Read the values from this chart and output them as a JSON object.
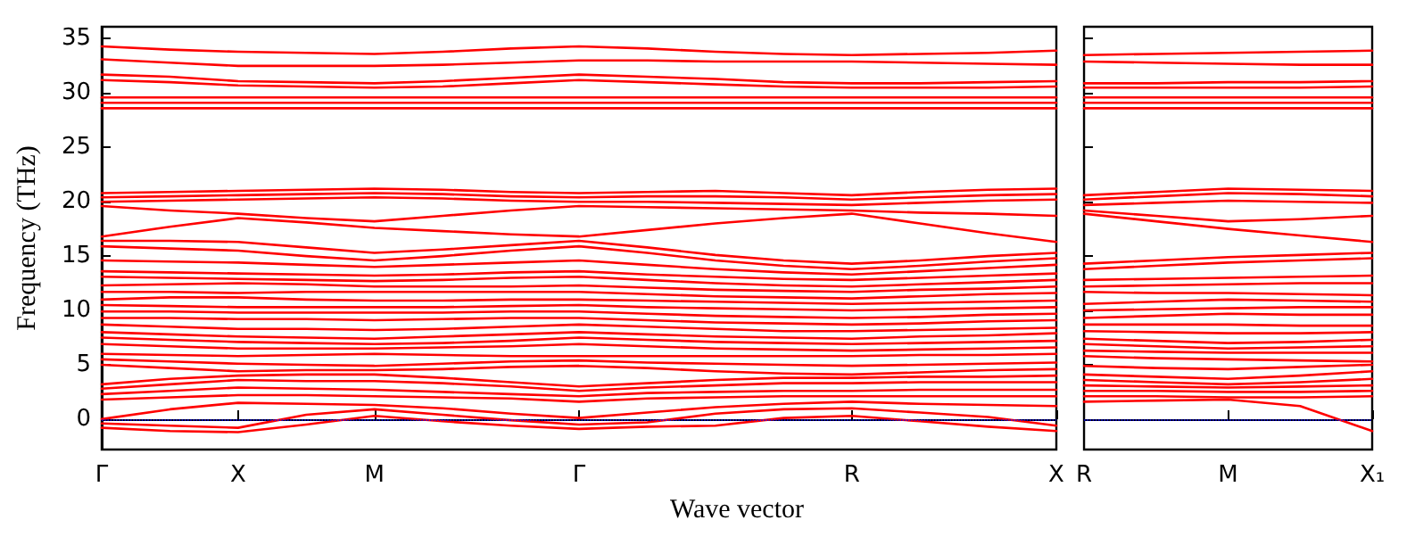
{
  "chart_data": [
    {
      "type": "line",
      "ylabel": "Frequency (THz)",
      "xlabel": "Wave vector",
      "categories": [
        "Γ",
        null,
        "X",
        null,
        "M",
        null,
        null,
        "Γ",
        null,
        null,
        null,
        "R",
        null,
        null,
        "X"
      ],
      "ylim": [
        -2.8,
        36.1
      ],
      "yticks": [
        0,
        5,
        10,
        15,
        20,
        25,
        30,
        35
      ],
      "ref_lines": [
        {
          "axis": "y",
          "value": 0,
          "label": null,
          "color": "#0000ff",
          "line_style": "dotted"
        }
      ],
      "series": [
        {
          "color": "#ff0000",
          "values": [
            34.3,
            34.0,
            33.8,
            33.7,
            33.6,
            33.8,
            34.1,
            34.3,
            34.1,
            33.8,
            33.6,
            33.5,
            33.6,
            33.7,
            33.9
          ]
        },
        {
          "color": "#ff0000",
          "values": [
            33.1,
            32.8,
            32.5,
            32.5,
            32.5,
            32.6,
            32.8,
            33.0,
            33.0,
            32.9,
            32.9,
            32.9,
            32.8,
            32.7,
            32.6
          ]
        },
        {
          "color": "#ff0000",
          "values": [
            31.7,
            31.5,
            31.1,
            31.0,
            30.9,
            31.1,
            31.4,
            31.7,
            31.5,
            31.3,
            31.0,
            30.9,
            30.9,
            31.0,
            31.1
          ]
        },
        {
          "color": "#ff0000",
          "values": [
            31.2,
            31.0,
            30.7,
            30.6,
            30.5,
            30.6,
            30.9,
            31.2,
            31.0,
            30.8,
            30.6,
            30.5,
            30.5,
            30.5,
            30.6
          ]
        },
        {
          "color": "#ff0000",
          "values": [
            29.6,
            29.6,
            29.6,
            29.6,
            29.6,
            29.6,
            29.6,
            29.6,
            29.6,
            29.6,
            29.6,
            29.6,
            29.6,
            29.6,
            29.6
          ]
        },
        {
          "color": "#ff0000",
          "values": [
            29.1,
            29.1,
            29.1,
            29.1,
            29.1,
            29.1,
            29.1,
            29.1,
            29.1,
            29.1,
            29.1,
            29.1,
            29.1,
            29.1,
            29.1
          ]
        },
        {
          "color": "#ff0000",
          "values": [
            28.6,
            28.6,
            28.6,
            28.6,
            28.6,
            28.6,
            28.6,
            28.6,
            28.6,
            28.6,
            28.6,
            28.6,
            28.6,
            28.6,
            28.6
          ]
        },
        {
          "color": "#ff0000",
          "values": [
            20.8,
            20.9,
            21.0,
            21.1,
            21.2,
            21.1,
            20.9,
            20.8,
            20.9,
            21.0,
            20.8,
            20.6,
            20.9,
            21.1,
            21.2
          ]
        },
        {
          "color": "#ff0000",
          "values": [
            20.4,
            20.5,
            20.6,
            20.7,
            20.8,
            20.7,
            20.5,
            20.4,
            20.5,
            20.5,
            20.4,
            20.2,
            20.4,
            20.6,
            20.7
          ]
        },
        {
          "color": "#ff0000",
          "values": [
            20.0,
            20.1,
            20.2,
            20.3,
            20.4,
            20.3,
            20.1,
            20.0,
            20.0,
            19.9,
            19.8,
            19.7,
            19.9,
            20.1,
            20.2
          ]
        },
        {
          "color": "#ff0000",
          "values": [
            19.6,
            19.2,
            18.9,
            18.5,
            18.2,
            18.7,
            19.2,
            19.6,
            19.5,
            19.4,
            19.3,
            19.2,
            19.0,
            18.9,
            18.7
          ]
        },
        {
          "color": "#ff0000",
          "values": [
            16.8,
            17.7,
            18.5,
            18.1,
            17.6,
            17.3,
            17.0,
            16.8,
            17.4,
            18.0,
            18.5,
            18.9,
            18.0,
            17.1,
            16.3
          ]
        },
        {
          "color": "#ff0000",
          "values": [
            16.4,
            16.4,
            16.3,
            15.8,
            15.3,
            15.6,
            16.0,
            16.4,
            15.8,
            15.1,
            14.6,
            14.3,
            14.6,
            15.0,
            15.3
          ]
        },
        {
          "color": "#ff0000",
          "values": [
            15.9,
            15.7,
            15.5,
            15.0,
            14.6,
            15.0,
            15.5,
            15.9,
            15.3,
            14.6,
            14.1,
            13.8,
            14.1,
            14.5,
            14.8
          ]
        },
        {
          "color": "#ff0000",
          "values": [
            14.6,
            14.5,
            14.4,
            14.2,
            14.0,
            14.2,
            14.4,
            14.6,
            14.2,
            13.8,
            13.5,
            13.3,
            13.6,
            13.9,
            14.2
          ]
        },
        {
          "color": "#ff0000",
          "values": [
            13.6,
            13.5,
            13.4,
            13.3,
            13.2,
            13.3,
            13.5,
            13.6,
            13.3,
            13.1,
            12.9,
            12.8,
            13.0,
            13.2,
            13.4
          ]
        },
        {
          "color": "#ff0000",
          "values": [
            13.1,
            13.0,
            12.9,
            12.8,
            12.7,
            12.8,
            13.0,
            13.1,
            12.8,
            12.5,
            12.3,
            12.2,
            12.4,
            12.6,
            12.8
          ]
        },
        {
          "color": "#ff0000",
          "values": [
            12.3,
            12.4,
            12.5,
            12.4,
            12.2,
            12.2,
            12.2,
            12.3,
            12.1,
            11.9,
            11.8,
            11.7,
            11.9,
            12.0,
            12.2
          ]
        },
        {
          "color": "#ff0000",
          "values": [
            11.7,
            11.7,
            11.6,
            11.7,
            11.7,
            11.7,
            11.7,
            11.7,
            11.5,
            11.3,
            11.2,
            11.1,
            11.3,
            11.5,
            11.6
          ]
        },
        {
          "color": "#ff0000",
          "values": [
            11.0,
            11.2,
            11.2,
            11.0,
            10.9,
            10.9,
            11.0,
            11.0,
            10.9,
            10.8,
            10.7,
            10.6,
            10.7,
            10.8,
            10.9
          ]
        },
        {
          "color": "#ff0000",
          "values": [
            10.5,
            10.4,
            10.3,
            10.3,
            10.3,
            10.3,
            10.4,
            10.5,
            10.3,
            10.2,
            10.1,
            10.0,
            10.1,
            10.2,
            10.3
          ]
        },
        {
          "color": "#ff0000",
          "values": [
            9.9,
            9.9,
            9.8,
            9.8,
            9.8,
            9.8,
            9.9,
            9.9,
            9.7,
            9.5,
            9.4,
            9.3,
            9.4,
            9.6,
            9.7
          ]
        },
        {
          "color": "#ff0000",
          "values": [
            9.3,
            9.3,
            9.2,
            9.2,
            9.1,
            9.2,
            9.3,
            9.3,
            9.1,
            8.9,
            8.8,
            8.7,
            8.8,
            9.0,
            9.1
          ]
        },
        {
          "color": "#ff0000",
          "values": [
            8.7,
            8.5,
            8.3,
            8.3,
            8.2,
            8.3,
            8.5,
            8.7,
            8.5,
            8.3,
            8.1,
            8.1,
            8.2,
            8.3,
            8.4
          ]
        },
        {
          "color": "#ff0000",
          "values": [
            8.0,
            7.8,
            7.6,
            7.5,
            7.4,
            7.6,
            7.8,
            8.0,
            7.8,
            7.6,
            7.5,
            7.4,
            7.6,
            7.7,
            7.9
          ]
        },
        {
          "color": "#ff0000",
          "values": [
            7.5,
            7.3,
            7.1,
            7.0,
            6.9,
            7.0,
            7.2,
            7.5,
            7.3,
            7.1,
            7.0,
            6.9,
            7.0,
            7.1,
            7.2
          ]
        },
        {
          "color": "#ff0000",
          "values": [
            6.9,
            6.7,
            6.5,
            6.5,
            6.5,
            6.6,
            6.7,
            6.9,
            6.7,
            6.5,
            6.4,
            6.3,
            6.4,
            6.5,
            6.6
          ]
        },
        {
          "color": "#ff0000",
          "values": [
            6.0,
            5.9,
            5.8,
            5.9,
            6.0,
            5.9,
            5.8,
            5.8,
            5.8,
            5.8,
            5.8,
            5.8,
            5.9,
            5.9,
            6.0
          ]
        },
        {
          "color": "#ff0000",
          "values": [
            5.5,
            5.3,
            5.1,
            5.0,
            4.9,
            5.1,
            5.3,
            5.4,
            5.2,
            5.1,
            5.0,
            4.9,
            5.0,
            5.1,
            5.2
          ]
        },
        {
          "color": "#ff0000",
          "values": [
            5.0,
            4.7,
            4.4,
            4.5,
            4.5,
            4.6,
            4.8,
            4.9,
            4.7,
            4.4,
            4.2,
            4.1,
            4.3,
            4.5,
            4.6
          ]
        },
        {
          "color": "#ff0000",
          "values": [
            3.2,
            3.7,
            4.0,
            4.1,
            4.1,
            3.8,
            3.4,
            3.0,
            3.3,
            3.6,
            3.8,
            3.8,
            3.9,
            3.9,
            4.0
          ]
        },
        {
          "color": "#ff0000",
          "values": [
            2.8,
            3.2,
            3.6,
            3.5,
            3.5,
            3.3,
            3.0,
            2.6,
            2.9,
            3.1,
            3.3,
            3.3,
            3.4,
            3.4,
            3.4
          ]
        },
        {
          "color": "#ff0000",
          "values": [
            2.3,
            2.6,
            2.9,
            2.8,
            2.7,
            2.5,
            2.3,
            2.1,
            2.4,
            2.5,
            2.6,
            2.6,
            2.7,
            2.7,
            2.7
          ]
        },
        {
          "color": "#ff0000",
          "values": [
            1.8,
            2.0,
            2.2,
            2.2,
            2.1,
            2.0,
            1.9,
            1.6,
            1.9,
            2.0,
            2.1,
            2.1,
            2.1,
            2.1,
            2.1
          ]
        },
        {
          "color": "#ff0000",
          "values": [
            0.0,
            0.9,
            1.5,
            1.4,
            1.3,
            1.0,
            0.5,
            0.1,
            0.6,
            1.1,
            1.4,
            1.6,
            1.4,
            1.3,
            1.2
          ]
        },
        {
          "color": "#ff0000",
          "values": [
            -0.4,
            -0.6,
            -0.8,
            0.4,
            0.9,
            0.4,
            -0.1,
            -0.5,
            -0.3,
            0.5,
            0.9,
            1.0,
            0.6,
            0.2,
            -0.6
          ]
        },
        {
          "color": "#ff0000",
          "values": [
            -0.8,
            -1.1,
            -1.2,
            -0.5,
            0.3,
            -0.2,
            -0.6,
            -0.9,
            -0.7,
            -0.6,
            0.1,
            0.3,
            -0.2,
            -0.7,
            -1.1
          ]
        }
      ]
    },
    {
      "type": "line",
      "tick_labels": "x",
      "categories": [
        "R",
        null,
        "M",
        null,
        "X₁"
      ],
      "ylim": [
        -2.8,
        36.1
      ],
      "yticks": [
        0,
        5,
        10,
        15,
        20,
        25,
        30,
        35
      ],
      "ref_lines": [
        {
          "axis": "y",
          "value": 0,
          "label": null,
          "color": "#0000ff",
          "line_style": "dotted"
        }
      ],
      "series": [
        {
          "color": "#ff0000",
          "values": [
            33.5,
            33.6,
            33.7,
            33.8,
            33.9
          ]
        },
        {
          "color": "#ff0000",
          "values": [
            32.9,
            32.8,
            32.7,
            32.6,
            32.6
          ]
        },
        {
          "color": "#ff0000",
          "values": [
            30.9,
            30.9,
            31.0,
            31.0,
            31.1
          ]
        },
        {
          "color": "#ff0000",
          "values": [
            30.5,
            30.5,
            30.5,
            30.5,
            30.6
          ]
        },
        {
          "color": "#ff0000",
          "values": [
            29.6,
            29.6,
            29.6,
            29.6,
            29.6
          ]
        },
        {
          "color": "#ff0000",
          "values": [
            29.1,
            29.1,
            29.1,
            29.1,
            29.1
          ]
        },
        {
          "color": "#ff0000",
          "values": [
            28.6,
            28.6,
            28.6,
            28.6,
            28.6
          ]
        },
        {
          "color": "#ff0000",
          "values": [
            20.6,
            20.9,
            21.2,
            21.1,
            21.0
          ]
        },
        {
          "color": "#ff0000",
          "values": [
            20.2,
            20.5,
            20.8,
            20.7,
            20.5
          ]
        },
        {
          "color": "#ff0000",
          "values": [
            19.7,
            19.9,
            20.1,
            20.0,
            19.9
          ]
        },
        {
          "color": "#ff0000",
          "values": [
            19.2,
            18.7,
            18.2,
            18.4,
            18.7
          ]
        },
        {
          "color": "#ff0000",
          "values": [
            18.9,
            18.2,
            17.5,
            16.9,
            16.3
          ]
        },
        {
          "color": "#ff0000",
          "values": [
            14.3,
            14.6,
            14.9,
            15.1,
            15.3
          ]
        },
        {
          "color": "#ff0000",
          "values": [
            13.8,
            14.1,
            14.4,
            14.6,
            14.8
          ]
        },
        {
          "color": "#ff0000",
          "values": [
            12.8,
            12.9,
            13.0,
            13.1,
            13.2
          ]
        },
        {
          "color": "#ff0000",
          "values": [
            12.2,
            12.3,
            12.4,
            12.5,
            12.5
          ]
        },
        {
          "color": "#ff0000",
          "values": [
            11.7,
            11.6,
            11.6,
            11.5,
            11.4
          ]
        },
        {
          "color": "#ff0000",
          "values": [
            10.6,
            10.8,
            11.0,
            10.9,
            10.8
          ]
        },
        {
          "color": "#ff0000",
          "values": [
            10.0,
            10.1,
            10.2,
            10.3,
            10.3
          ]
        },
        {
          "color": "#ff0000",
          "values": [
            9.3,
            9.5,
            9.7,
            9.6,
            9.6
          ]
        },
        {
          "color": "#ff0000",
          "values": [
            8.7,
            8.7,
            8.7,
            8.6,
            8.6
          ]
        },
        {
          "color": "#ff0000",
          "values": [
            8.1,
            8.0,
            7.9,
            7.9,
            8.0
          ]
        },
        {
          "color": "#ff0000",
          "values": [
            7.4,
            7.2,
            7.0,
            7.1,
            7.3
          ]
        },
        {
          "color": "#ff0000",
          "values": [
            6.9,
            6.7,
            6.5,
            6.6,
            6.7
          ]
        },
        {
          "color": "#ff0000",
          "values": [
            6.3,
            6.2,
            6.1,
            6.1,
            6.1
          ]
        },
        {
          "color": "#ff0000",
          "values": [
            5.8,
            5.6,
            5.5,
            5.4,
            5.3
          ]
        },
        {
          "color": "#ff0000",
          "values": [
            4.9,
            4.7,
            4.6,
            4.8,
            5.0
          ]
        },
        {
          "color": "#ff0000",
          "values": [
            4.1,
            3.9,
            3.7,
            4.0,
            4.4
          ]
        },
        {
          "color": "#ff0000",
          "values": [
            3.6,
            3.4,
            3.2,
            3.4,
            3.7
          ]
        },
        {
          "color": "#ff0000",
          "values": [
            3.1,
            3.0,
            2.9,
            3.0,
            3.1
          ]
        },
        {
          "color": "#ff0000",
          "values": [
            2.6,
            2.6,
            2.5,
            2.5,
            2.6
          ]
        },
        {
          "color": "#ff0000",
          "values": [
            2.1,
            2.1,
            2.0,
            2.0,
            2.1
          ]
        },
        {
          "color": "#ff0000",
          "values": [
            1.6,
            1.7,
            1.8,
            1.2,
            -1.1
          ]
        }
      ]
    }
  ]
}
